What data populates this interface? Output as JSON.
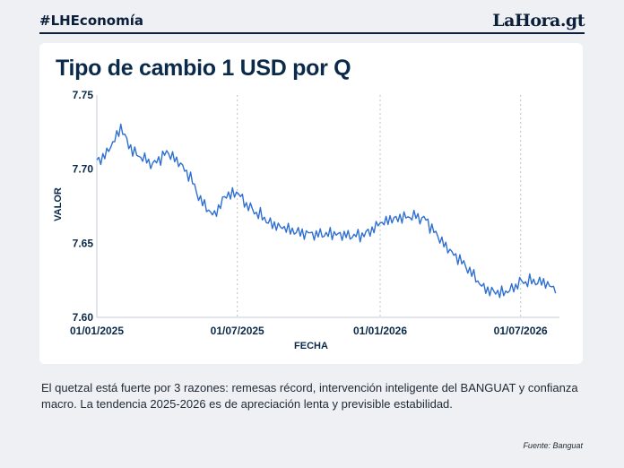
{
  "header": {
    "hashtag": "#LHEconomía",
    "logo": "LaHora.gt"
  },
  "caption": "El quetzal está fuerte por 3 razones: remesas récord, intervención inteligente del BANGUAT y confianza macro. La tendencia 2025-2026 es de apreciación lenta y previsible estabilidad.",
  "source": "Fuente: Banguat",
  "colors": {
    "line": "#2f6fd1",
    "text": "#0b2a4a",
    "grid": "#b7c4d3"
  },
  "chart_data": {
    "type": "line",
    "title": "Tipo de cambio 1 USD por Q",
    "xlabel": "FECHA",
    "ylabel": "VALOR",
    "ylim": [
      7.6,
      7.75
    ],
    "yticks": [
      7.6,
      7.65,
      7.7,
      7.75
    ],
    "yticklabels": [
      "7.60",
      "7.65",
      "7.70",
      "7.75"
    ],
    "xticks": [
      "2025-01-01",
      "2025-07-01",
      "2026-01-01",
      "2026-07-01"
    ],
    "xticklabels": [
      "01/01/2025",
      "01/07/2025",
      "01/01/2026",
      "01/07/2026"
    ],
    "grid": "vertical dashed",
    "series": [
      {
        "x": [
          "2025-01-01",
          "2025-01-15",
          "2025-02-01",
          "2025-02-15",
          "2025-03-01",
          "2025-03-15",
          "2025-04-01",
          "2025-04-15",
          "2025-05-01",
          "2025-05-15",
          "2025-06-01",
          "2025-06-15",
          "2025-07-01",
          "2025-07-15",
          "2025-08-01",
          "2025-08-15",
          "2025-09-01",
          "2025-09-15",
          "2025-10-01",
          "2025-10-15",
          "2025-11-01",
          "2025-11-15",
          "2025-12-01",
          "2025-12-15",
          "2026-01-01",
          "2026-01-15",
          "2026-02-01",
          "2026-02-15",
          "2026-03-01",
          "2026-03-15",
          "2026-04-01",
          "2026-04-15",
          "2026-05-01",
          "2026-05-15",
          "2026-06-01",
          "2026-06-15",
          "2026-07-01",
          "2026-07-15",
          "2026-08-01",
          "2026-08-15"
        ],
        "values": [
          7.705,
          7.712,
          7.728,
          7.712,
          7.707,
          7.703,
          7.712,
          7.706,
          7.695,
          7.678,
          7.668,
          7.682,
          7.685,
          7.675,
          7.668,
          7.662,
          7.66,
          7.658,
          7.657,
          7.656,
          7.656,
          7.655,
          7.655,
          7.657,
          7.664,
          7.666,
          7.667,
          7.668,
          7.666,
          7.656,
          7.645,
          7.638,
          7.628,
          7.619,
          7.617,
          7.618,
          7.624,
          7.624,
          7.623,
          7.619
        ]
      }
    ]
  }
}
